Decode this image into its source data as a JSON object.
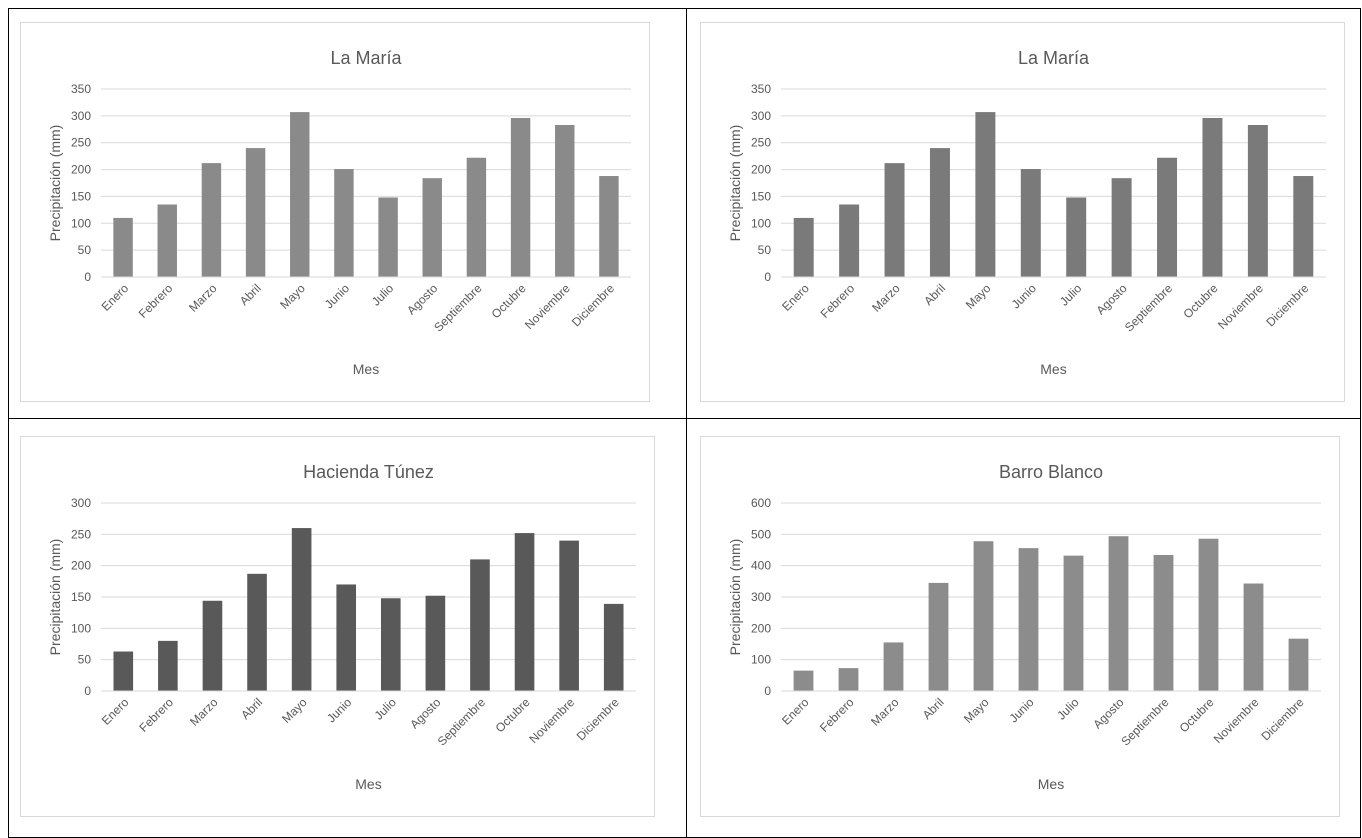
{
  "chart_data": [
    {
      "type": "bar",
      "title": "La María",
      "x_label": "Mes",
      "y_label": "Precipitación (mm)",
      "categories": [
        "Enero",
        "Febrero",
        "Marzo",
        "Abril",
        "Mayo",
        "Junio",
        "Julio",
        "Agosto",
        "Septiembre",
        "Octubre",
        "Noviembre",
        "Diciembre"
      ],
      "values": [
        110,
        135,
        212,
        240,
        307,
        201,
        148,
        184,
        222,
        296,
        283,
        188
      ],
      "color": "#8a8a8a",
      "ylim": [
        0,
        350
      ],
      "yticks": [
        0,
        50,
        100,
        150,
        200,
        250,
        300,
        350
      ],
      "grid": true
    },
    {
      "type": "bar",
      "title": "La María",
      "x_label": "Mes",
      "y_label": "Precipitación (mm)",
      "categories": [
        "Enero",
        "Febrero",
        "Marzo",
        "Abril",
        "Mayo",
        "Junio",
        "Julio",
        "Agosto",
        "Septiembre",
        "Octubre",
        "Noviembre",
        "Diciembre"
      ],
      "values": [
        110,
        135,
        212,
        240,
        307,
        201,
        148,
        184,
        222,
        296,
        283,
        188
      ],
      "color": "#7a7a7a",
      "ylim": [
        0,
        350
      ],
      "yticks": [
        0,
        50,
        100,
        150,
        200,
        250,
        300,
        350
      ],
      "grid": true
    },
    {
      "type": "bar",
      "title": "Hacienda Túnez",
      "x_label": "Mes",
      "y_label": "Precipitación (mm)",
      "categories": [
        "Enero",
        "Febrero",
        "Marzo",
        "Abril",
        "Mayo",
        "Junio",
        "Julio",
        "Agosto",
        "Septiembre",
        "Octubre",
        "Noviembre",
        "Diciembre"
      ],
      "values": [
        63,
        80,
        144,
        187,
        260,
        170,
        148,
        152,
        210,
        252,
        240,
        139
      ],
      "color": "#595959",
      "ylim": [
        0,
        300
      ],
      "yticks": [
        0,
        50,
        100,
        150,
        200,
        250,
        300
      ],
      "grid": true
    },
    {
      "type": "bar",
      "title": "Barro Blanco",
      "x_label": "Mes",
      "y_label": "Precipitación (mm)",
      "categories": [
        "Enero",
        "Febrero",
        "Marzo",
        "Abril",
        "Mayo",
        "Junio",
        "Julio",
        "Agosto",
        "Septiembre",
        "Octubre",
        "Noviembre",
        "Diciembre"
      ],
      "values": [
        65,
        73,
        155,
        345,
        478,
        456,
        432,
        494,
        434,
        486,
        343,
        167
      ],
      "color": "#8c8c8c",
      "ylim": [
        0,
        600
      ],
      "yticks": [
        0,
        100,
        200,
        300,
        400,
        500,
        600
      ],
      "grid": true
    }
  ]
}
